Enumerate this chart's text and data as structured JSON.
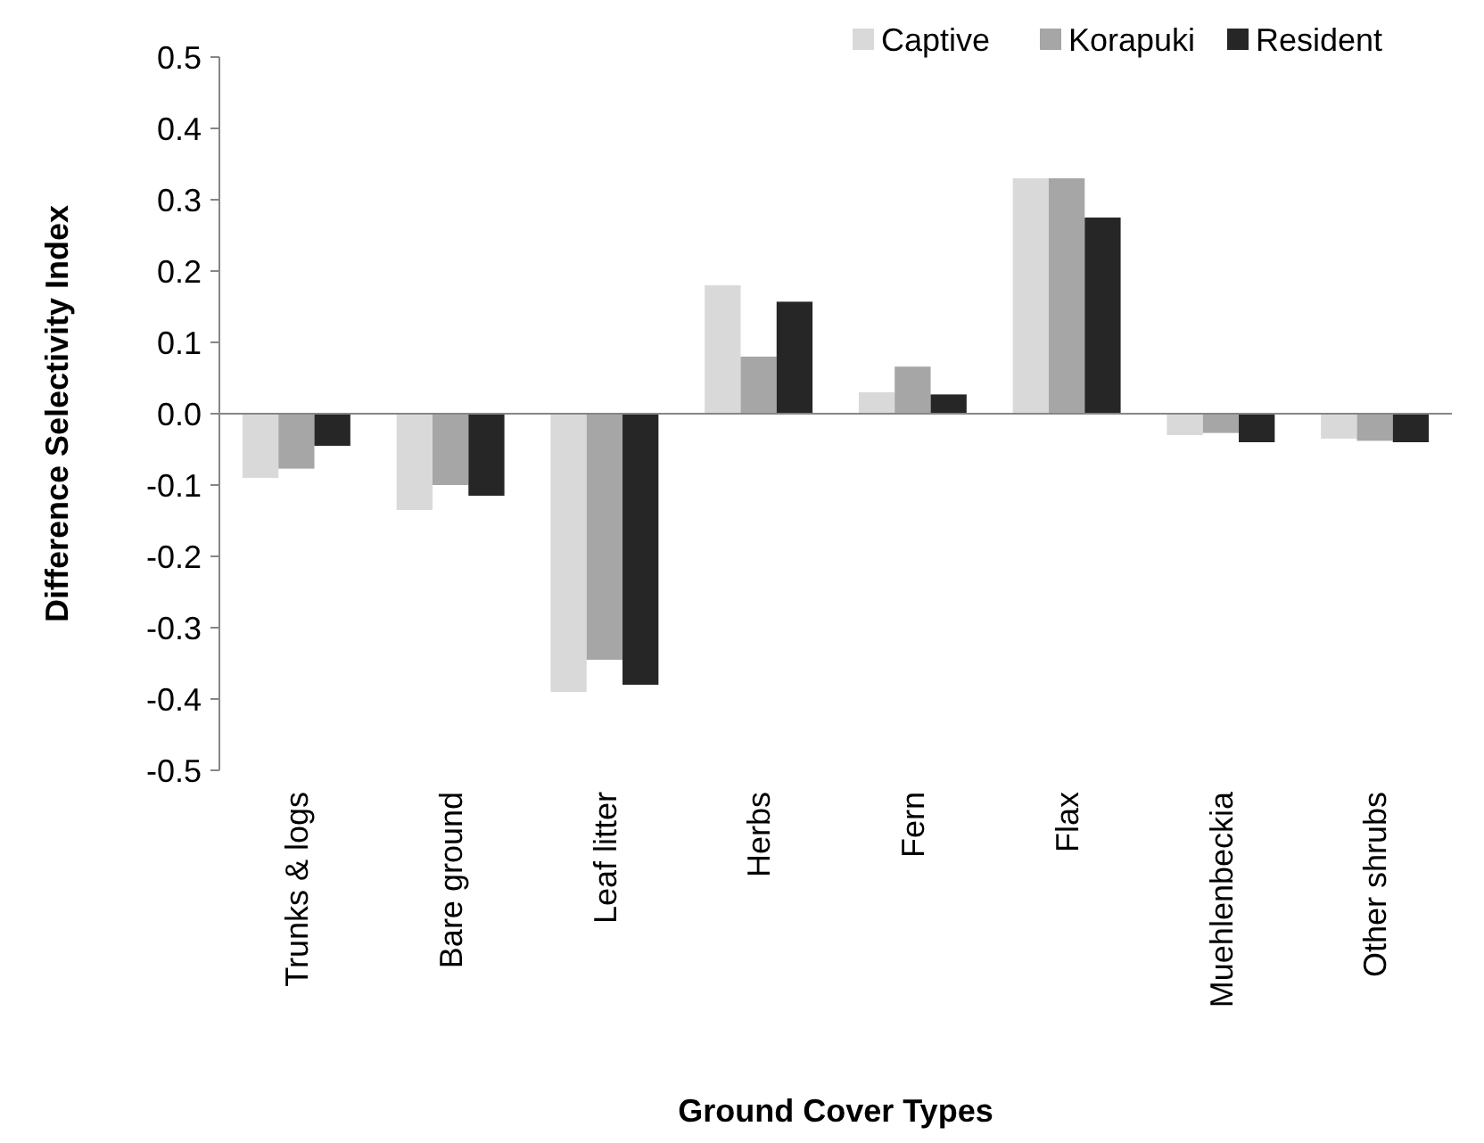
{
  "chart_data": {
    "type": "bar",
    "xlabel": "Ground Cover Types",
    "ylabel": "Difference Selectivity Index",
    "categories": [
      "Trunks & logs",
      "Bare ground",
      "Leaf litter",
      "Herbs",
      "Fern",
      "Flax",
      "Muehlenbeckia",
      "Other shrubs"
    ],
    "series": [
      {
        "name": "Captive",
        "color": "#d9d9d9",
        "values": [
          -0.09,
          -0.135,
          -0.39,
          0.18,
          0.03,
          0.33,
          -0.03,
          -0.035
        ]
      },
      {
        "name": "Korapuki",
        "color": "#a6a6a6",
        "values": [
          -0.077,
          -0.1,
          -0.345,
          0.08,
          0.066,
          0.33,
          -0.027,
          -0.038
        ]
      },
      {
        "name": "Resident",
        "color": "#262626",
        "values": [
          -0.045,
          -0.115,
          -0.38,
          0.157,
          0.027,
          0.275,
          -0.04,
          -0.04
        ]
      }
    ],
    "ylim": [
      -0.5,
      0.5
    ],
    "yticks": [
      -0.5,
      -0.4,
      -0.3,
      -0.2,
      -0.1,
      {
        "value": 0,
        "label": "0.0"
      },
      0.1,
      0.2,
      0.3,
      0.4,
      0.5
    ],
    "legend": "top right"
  }
}
